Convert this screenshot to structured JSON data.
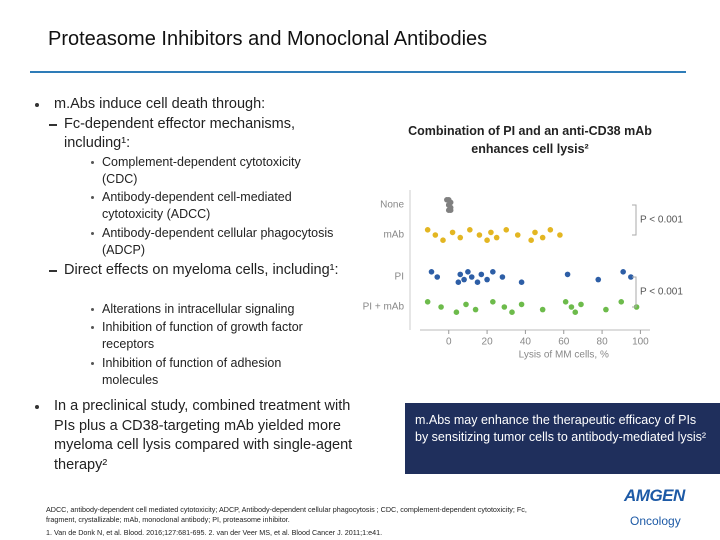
{
  "title": "Proteasome Inhibitors and Monoclonal Antibodies",
  "bullets": [
    {
      "text": "m.Abs induce cell death through:",
      "sub": [
        {
          "text": "Fc-dependent effector mechanisms, including¹:",
          "sub": [
            "Complement-dependent cytotoxicity (CDC)",
            "Antibody-dependent cell-mediated cytotoxicity (ADCC)",
            "Antibody-dependent cellular phagocytosis (ADCP)"
          ]
        },
        {
          "text": "Direct effects on myeloma cells, including¹:",
          "sub": [
            "Alterations in intracellular signaling",
            "Inhibition of function of growth factor receptors",
            "Inhibition of function of adhesion molecules"
          ]
        }
      ]
    },
    {
      "text": "In a preclinical study, combined treatment with PIs plus a CD38-targeting mAb yielded more myeloma cell lysis compared with single-agent therapy²"
    }
  ],
  "chart_data": {
    "type": "scatter",
    "title": "Combination of PI and an anti-CD38 mAb enhances cell lysis²",
    "categories": [
      "None",
      "mAb",
      "PI",
      "PI + mAb"
    ],
    "xlabel": "Lysis of MM cells, %",
    "xlim": [
      -15,
      105
    ],
    "xticks": [
      0,
      20,
      40,
      60,
      80,
      100
    ],
    "series": [
      {
        "name": "None",
        "color": "#808080",
        "values": [
          0,
          0,
          0,
          1,
          1,
          -1,
          0,
          1
        ]
      },
      {
        "name": "mAb",
        "color": "#e3b622",
        "values": [
          -11,
          -7,
          -3,
          2,
          6,
          11,
          16,
          20,
          22,
          25,
          30,
          36,
          43,
          45,
          49,
          53,
          58
        ]
      },
      {
        "name": "PI",
        "color": "#2d5ea6",
        "values": [
          -9,
          -6,
          5,
          6,
          8,
          10,
          12,
          15,
          17,
          20,
          23,
          28,
          38,
          62,
          78,
          91,
          95
        ]
      },
      {
        "name": "PI + mAb",
        "color": "#6dbb4b",
        "values": [
          -11,
          -4,
          4,
          9,
          14,
          23,
          29,
          33,
          38,
          49,
          61,
          64,
          66,
          69,
          82,
          90,
          98
        ]
      }
    ],
    "annotations": [
      "P < 0.001",
      "P < 0.001"
    ]
  },
  "callout": "m.Abs may enhance the therapeutic efficacy of PIs by sensitizing tumor cells to antibody-mediated lysis²",
  "footnotes": [
    "ADCC, antibody-dependent cell mediated cytotoxicity; ADCP, Antibody-dependent cellular phagocytosis ; CDC, complement-dependent cytotoxicity; Fc, fragment, crystallizable; mAb, monoclonal antibody; PI, proteasome inhibitor.",
    "1. Van de Donk N, et al. Blood. 2016;127:681-695. 2. van der Veer MS, et al. Blood Cancer J. 2011;1:e41."
  ],
  "logo": {
    "brand": "AMGEN",
    "unit": "Oncology"
  }
}
